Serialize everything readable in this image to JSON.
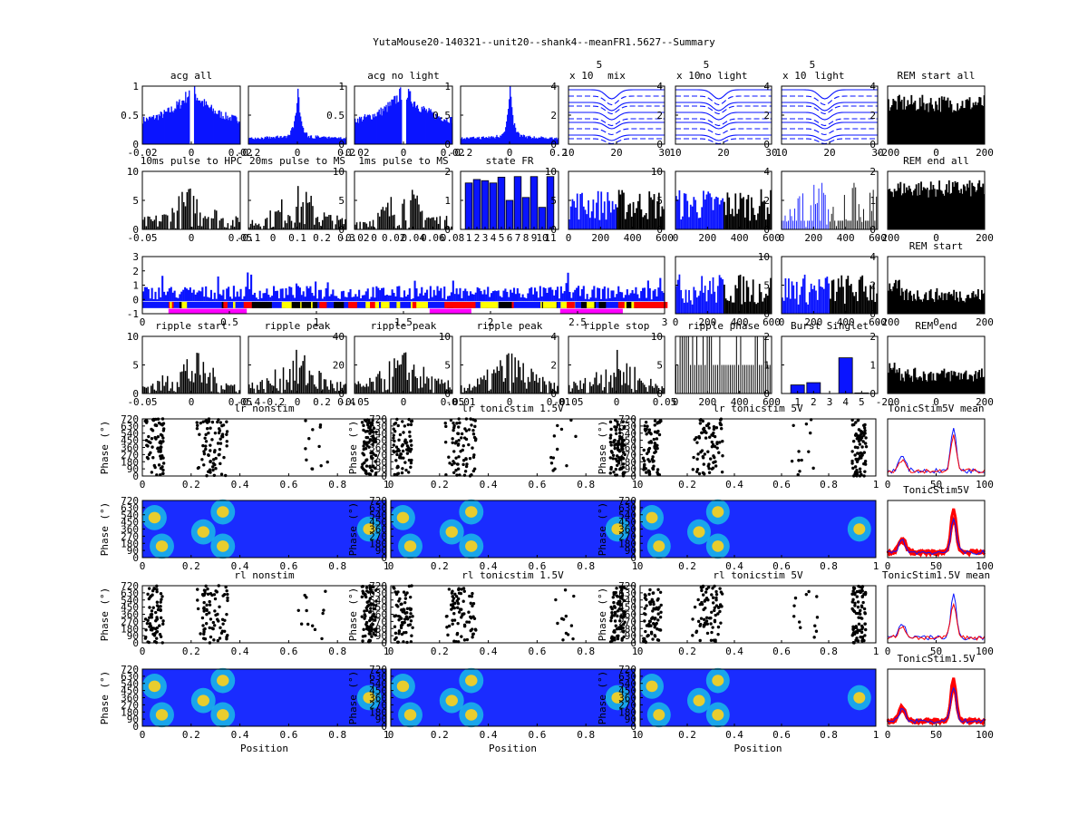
{
  "title": "YutaMouse20-140321--unit20--shank4--meanFR1.5627--Summary",
  "colors": {
    "blue": "#0a14ff",
    "black": "#000000",
    "red": "#ff0000",
    "magenta": "#ff00ff",
    "yellow": "#ffff00"
  },
  "panels": [
    {
      "title": "acg all",
      "xticks": [
        "-0.02",
        "0",
        "0.02"
      ],
      "yticks": [
        "0",
        "0.5",
        "1"
      ],
      "style": "acg"
    },
    {
      "title": "",
      "xticks": [
        "-0.2",
        "0",
        "0.2"
      ],
      "yticks": [
        "0",
        "0.5",
        "1"
      ],
      "yside": "right",
      "style": "acgpeak"
    },
    {
      "title": "acg no light",
      "xticks": [
        "-0.02",
        "0",
        "0.02"
      ],
      "yticks": [
        "0",
        "0.5",
        "1"
      ],
      "yside": "right",
      "style": "acg"
    },
    {
      "title": "",
      "xticks": [
        "-0.2",
        "0",
        "0.2"
      ],
      "yticks": [
        "0",
        "2",
        "4"
      ],
      "yside": "right",
      "style": "acgpeak"
    },
    {
      "title": "mix",
      "exp": "x 10",
      "exppow": "5",
      "xticks": [
        "10",
        "20",
        "30"
      ],
      "yticks": [
        "0",
        "2",
        "4"
      ],
      "yside": "right",
      "style": "waves"
    },
    {
      "title": "no light",
      "exp": "x 10",
      "exppow": "5",
      "xticks": [
        "10",
        "20",
        "30"
      ],
      "yticks": [
        "0",
        "2",
        "4"
      ],
      "yside": "right",
      "style": "waves"
    },
    {
      "title": "light",
      "exp": "x 10",
      "exppow": "5",
      "xticks": [
        "10",
        "20",
        "30"
      ],
      "yticks": [
        "0",
        "2",
        "4"
      ],
      "yside": "right",
      "style": "waves"
    },
    {
      "title": "REM start all",
      "xticks": [
        "-200",
        "0",
        "200"
      ],
      "style": "rem"
    },
    {
      "title": "10ms pulse to HPC",
      "xticks": [
        "-0.05",
        "0",
        "0.05"
      ],
      "yticks": [
        "0",
        "5",
        "10"
      ],
      "style": "hist"
    },
    {
      "title": "20ms pulse to MS",
      "xticks": [
        "-0.1",
        "0",
        "0.1",
        "0.2",
        "0.3"
      ],
      "yticks": [
        "0",
        "5",
        "10"
      ],
      "yside": "right",
      "style": "hist"
    },
    {
      "title": "1ms pulse to MS",
      "xticks": [
        "-0.02",
        "0",
        "0.02",
        "0.04",
        "0.06",
        "0.08"
      ],
      "yticks": [
        "0",
        "1",
        "2"
      ],
      "yside": "right",
      "style": "hist"
    },
    {
      "title": "state FR",
      "xticks": [
        "1",
        "2",
        "3",
        "4",
        "5",
        "6",
        "7",
        "8",
        "9",
        "10",
        "11"
      ],
      "yticks": [
        "0",
        "5",
        "10"
      ],
      "yside": "right",
      "style": "statefr"
    },
    {
      "title": "",
      "xticks": [
        "0",
        "200",
        "400",
        "600"
      ],
      "yticks": [
        "0",
        "5",
        "10"
      ],
      "yside": "right",
      "style": "bluehist"
    },
    {
      "title": "",
      "xticks": [
        "0",
        "200",
        "400",
        "600"
      ],
      "yticks": [
        "0",
        "2",
        "4"
      ],
      "yside": "right",
      "style": "bluehist"
    },
    {
      "title": "",
      "xticks": [
        "0",
        "200",
        "400",
        "600"
      ],
      "yticks": [
        "0",
        "1",
        "2"
      ],
      "yside": "right",
      "style": "sparse"
    },
    {
      "title": "REM end all",
      "xticks": [
        "-200",
        "0",
        "200"
      ],
      "style": "rem"
    },
    {
      "title": "",
      "xticks": [
        "0",
        "0.5",
        "1",
        "1.5",
        "2",
        "2.5",
        "3"
      ],
      "yticks": [
        "-1",
        "0",
        "1",
        "2",
        "3"
      ],
      "style": "timeline"
    },
    {
      "title": "",
      "xticks": [
        "0",
        "200",
        "400",
        "600"
      ],
      "yticks": [
        "0",
        "5",
        "10"
      ],
      "yside": "right",
      "style": "bluehist"
    },
    {
      "title": "",
      "xticks": [
        "0",
        "200",
        "400",
        "600"
      ],
      "yticks": [
        "0",
        "2",
        "4"
      ],
      "yside": "right",
      "style": "bluehist"
    },
    {
      "title": "REM start",
      "xticks": [
        "-200",
        "0",
        "200"
      ],
      "style": "rem"
    },
    {
      "title": "ripple start",
      "xticks": [
        "-0.05",
        "0",
        "0.05"
      ],
      "yticks": [
        "0",
        "5",
        "10"
      ],
      "style": "hist"
    },
    {
      "title": "ripple peak",
      "xticks": [
        "-0.4",
        "-0.2",
        "0",
        "0.2",
        "0.4"
      ],
      "yticks": [
        "0",
        "20",
        "40"
      ],
      "yside": "right",
      "style": "hist"
    },
    {
      "title": "ripple peak",
      "xticks": [
        "-0.05",
        "0",
        "0.05"
      ],
      "yticks": [
        "0",
        "5",
        "10"
      ],
      "yside": "right",
      "style": "hist"
    },
    {
      "title": "ripple peak",
      "xticks": [
        "-0.01",
        "0",
        "0.01"
      ],
      "yticks": [
        "0",
        "2",
        "4"
      ],
      "yside": "right",
      "style": "hist"
    },
    {
      "title": "ripple stop",
      "xticks": [
        "-0.05",
        "0",
        "0.05"
      ],
      "yticks": [
        "0",
        "5",
        "10"
      ],
      "yside": "right",
      "style": "hist"
    },
    {
      "title": "ripple phase",
      "xticks": [
        "0",
        "200",
        "400",
        "600"
      ],
      "yticks": [
        "0",
        "1",
        "2"
      ],
      "yside": "right",
      "style": "phase"
    },
    {
      "title": "Burst Singlet",
      "xticks": [
        "1",
        "2",
        "3",
        "4",
        "5"
      ],
      "yticks": [
        "0",
        "1",
        "2"
      ],
      "yside": "right",
      "style": "burst"
    },
    {
      "title": "REM end",
      "xticks": [
        "-200",
        "0",
        "200"
      ],
      "style": "rem"
    },
    {
      "title": "lr nonstim",
      "xticks": [
        "0",
        "0.2",
        "0.4",
        "0.6",
        "0.8",
        "1"
      ],
      "yticks": [
        "0",
        "90",
        "180",
        "270",
        "360",
        "450",
        "540",
        "630",
        "720"
      ],
      "ylabel": "Phase (°)",
      "style": "raster"
    },
    {
      "title": "lr tonicstim 1.5V",
      "xticks": [
        "0",
        "0.2",
        "0.4",
        "0.6",
        "0.8",
        "1"
      ],
      "yticks": [
        "0",
        "90",
        "180",
        "270",
        "360",
        "450",
        "540",
        "630",
        "720"
      ],
      "ylabel": "Phase (°)",
      "style": "raster"
    },
    {
      "title": "lr tonicstim 5V",
      "xticks": [
        "0",
        "0.2",
        "0.4",
        "0.6",
        "0.8",
        "1"
      ],
      "yticks": [
        "0",
        "90",
        "180",
        "270",
        "360",
        "450",
        "540",
        "630",
        "720"
      ],
      "ylabel": "Phase (°)",
      "style": "raster"
    },
    {
      "title": "TonicStim5V mean",
      "xticks": [
        "0",
        "50",
        "100"
      ],
      "style": "meanlines"
    },
    {
      "title": "",
      "xticks": [
        "0",
        "0.2",
        "0.4",
        "0.6",
        "0.8",
        "1"
      ],
      "yticks": [
        "0",
        "90",
        "180",
        "270",
        "360",
        "450",
        "540",
        "630",
        "720"
      ],
      "ylabel": "Phase (°)",
      "style": "heat"
    },
    {
      "title": "",
      "xticks": [
        "0",
        "0.2",
        "0.4",
        "0.6",
        "0.8",
        "1"
      ],
      "yticks": [
        "0",
        "90",
        "180",
        "270",
        "360",
        "450",
        "540",
        "630",
        "720"
      ],
      "ylabel": "Phase (°)",
      "style": "heat"
    },
    {
      "title": "",
      "xticks": [
        "0",
        "0.2",
        "0.4",
        "0.6",
        "0.8",
        "1"
      ],
      "yticks": [
        "0",
        "90",
        "180",
        "270",
        "360",
        "450",
        "540",
        "630",
        "720"
      ],
      "ylabel": "Phase (°)",
      "style": "heat"
    },
    {
      "title": "TonicStim5V",
      "xticks": [
        "0",
        "50",
        "100"
      ],
      "style": "redlines"
    },
    {
      "title": "rl nonstim",
      "xticks": [
        "0",
        "0.2",
        "0.4",
        "0.6",
        "0.8",
        "1"
      ],
      "yticks": [
        "0",
        "90",
        "180",
        "270",
        "360",
        "450",
        "540",
        "630",
        "720"
      ],
      "ylabel": "Phase (°)",
      "style": "raster"
    },
    {
      "title": "rl tonicstim 1.5V",
      "xticks": [
        "0",
        "0.2",
        "0.4",
        "0.6",
        "0.8",
        "1"
      ],
      "yticks": [
        "0",
        "90",
        "180",
        "270",
        "360",
        "450",
        "540",
        "630",
        "720"
      ],
      "ylabel": "Phase (°)",
      "style": "raster"
    },
    {
      "title": "rl tonicstim 5V",
      "xticks": [
        "0",
        "0.2",
        "0.4",
        "0.6",
        "0.8",
        "1"
      ],
      "yticks": [
        "0",
        "90",
        "180",
        "270",
        "360",
        "450",
        "540",
        "630",
        "720"
      ],
      "ylabel": "Phase (°)",
      "style": "raster"
    },
    {
      "title": "TonicStim1.5V mean",
      "xticks": [
        "0",
        "50",
        "100"
      ],
      "style": "meanlines"
    },
    {
      "title": "",
      "xticks": [
        "0",
        "0.2",
        "0.4",
        "0.6",
        "0.8",
        "1"
      ],
      "yticks": [
        "0",
        "90",
        "180",
        "270",
        "360",
        "450",
        "540",
        "630",
        "720"
      ],
      "ylabel": "Phase (°)",
      "xlabel": "Position",
      "style": "heat"
    },
    {
      "title": "",
      "xticks": [
        "0",
        "0.2",
        "0.4",
        "0.6",
        "0.8",
        "1"
      ],
      "yticks": [
        "0",
        "90",
        "180",
        "270",
        "360",
        "450",
        "540",
        "630",
        "720"
      ],
      "ylabel": "Phase (°)",
      "xlabel": "Position",
      "style": "heat"
    },
    {
      "title": "",
      "xticks": [
        "0",
        "0.2",
        "0.4",
        "0.6",
        "0.8",
        "1"
      ],
      "yticks": [
        "0",
        "90",
        "180",
        "270",
        "360",
        "450",
        "540",
        "630",
        "720"
      ],
      "ylabel": "Phase (°)",
      "xlabel": "Position",
      "style": "heat"
    },
    {
      "title": "TonicStim1.5V",
      "xticks": [
        "0",
        "50",
        "100"
      ],
      "style": "redlines"
    }
  ],
  "chart_data": {
    "type": "multi-panel",
    "title": "YutaMouse20-140321--unit20--shank4--meanFR1.5627--Summary",
    "state_fr": {
      "categories": [
        "1",
        "2",
        "3",
        "4",
        "5",
        "6",
        "7",
        "8",
        "9",
        "10",
        "11"
      ],
      "values": [
        8,
        8.6,
        8.4,
        8,
        9,
        5,
        9.1,
        5.5,
        9.1,
        3.8,
        9.1
      ],
      "ylim": [
        0,
        10
      ]
    },
    "burst_singlet": {
      "categories": [
        "1",
        "2",
        "3",
        "4",
        "5"
      ],
      "values": [
        0.3,
        0.38,
        0,
        1.25,
        0.02
      ],
      "ylim": [
        0,
        2
      ]
    },
    "place_field_peaks": {
      "position": [
        0.08,
        0.33,
        0.93
      ],
      "phase_deg": [
        90,
        450
      ]
    }
  }
}
